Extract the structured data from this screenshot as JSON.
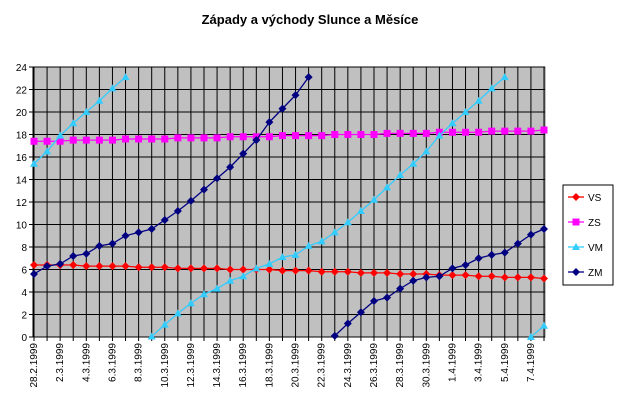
{
  "chart_data": {
    "type": "line",
    "title": "Západy a východy Slunce a Měsíce",
    "categories": [
      "28.2.1999",
      null,
      "2.3.1999",
      null,
      "4.3.1999",
      null,
      "6.3.1999",
      null,
      "8.3.1999",
      null,
      "10.3.1999",
      null,
      "12.3.1999",
      null,
      "14.3.1999",
      null,
      "16.3.1999",
      null,
      "18.3.1999",
      null,
      "20.3.1999",
      null,
      "22.3.1999",
      null,
      "24.3.1999",
      null,
      "26.3.1999",
      null,
      "28.3.1999",
      null,
      "30.3.1999",
      null,
      "1.4.1999",
      null,
      "3.4.1999",
      null,
      "5.4.1999",
      null,
      "7.4.1999",
      null
    ],
    "series": [
      {
        "name": "VS",
        "color": "#ff0000",
        "marker": "diamond",
        "values": [
          6.4,
          6.4,
          6.4,
          6.4,
          6.3,
          6.3,
          6.3,
          6.3,
          6.2,
          6.2,
          6.2,
          6.1,
          6.1,
          6.1,
          6.1,
          6.0,
          6.0,
          6.0,
          6.0,
          5.9,
          5.9,
          5.9,
          5.8,
          5.8,
          5.8,
          5.7,
          5.7,
          5.7,
          5.6,
          5.6,
          5.6,
          5.5,
          5.5,
          5.5,
          5.4,
          5.4,
          5.3,
          5.3,
          5.3,
          5.2
        ]
      },
      {
        "name": "ZS",
        "color": "#ff00ff",
        "marker": "square",
        "values": [
          17.4,
          17.4,
          17.4,
          17.5,
          17.5,
          17.5,
          17.5,
          17.6,
          17.6,
          17.6,
          17.6,
          17.7,
          17.7,
          17.7,
          17.7,
          17.8,
          17.8,
          17.8,
          17.8,
          17.9,
          17.9,
          17.9,
          17.9,
          18.0,
          18.0,
          18.0,
          18.0,
          18.1,
          18.1,
          18.1,
          18.1,
          18.2,
          18.2,
          18.2,
          18.2,
          18.3,
          18.3,
          18.3,
          18.3,
          18.4
        ]
      },
      {
        "name": "VM",
        "color": "#33ccff",
        "marker": "triangle",
        "values": [
          15.4,
          16.5,
          17.9,
          19.0,
          20.0,
          21.0,
          22.1,
          23.1,
          null,
          0.05,
          1.1,
          2.1,
          3.0,
          3.8,
          4.3,
          5.0,
          5.4,
          6.1,
          6.5,
          7.1,
          7.3,
          8.1,
          8.5,
          9.3,
          10.2,
          11.2,
          12.2,
          13.3,
          14.4,
          15.4,
          16.5,
          17.9,
          19.0,
          20.0,
          21.0,
          22.1,
          23.1,
          null,
          0.0,
          1.0
        ]
      },
      {
        "name": "ZM",
        "color": "#000080",
        "marker": "diamond",
        "values": [
          5.6,
          6.3,
          6.5,
          7.2,
          7.4,
          8.1,
          8.3,
          9.0,
          9.3,
          9.6,
          10.4,
          11.2,
          12.1,
          13.1,
          14.1,
          15.1,
          16.3,
          17.5,
          19.1,
          20.3,
          21.5,
          23.1,
          null,
          0.1,
          1.2,
          2.2,
          3.2,
          3.5,
          4.3,
          5.0,
          5.3,
          5.4,
          6.1,
          6.4,
          7.0,
          7.3,
          7.5,
          8.3,
          9.1,
          9.6
        ]
      }
    ],
    "ylim": [
      0,
      24
    ],
    "yticks": [
      0,
      2,
      4,
      6,
      8,
      10,
      12,
      14,
      16,
      18,
      20,
      22,
      24
    ],
    "grid": true,
    "legend": "right"
  }
}
